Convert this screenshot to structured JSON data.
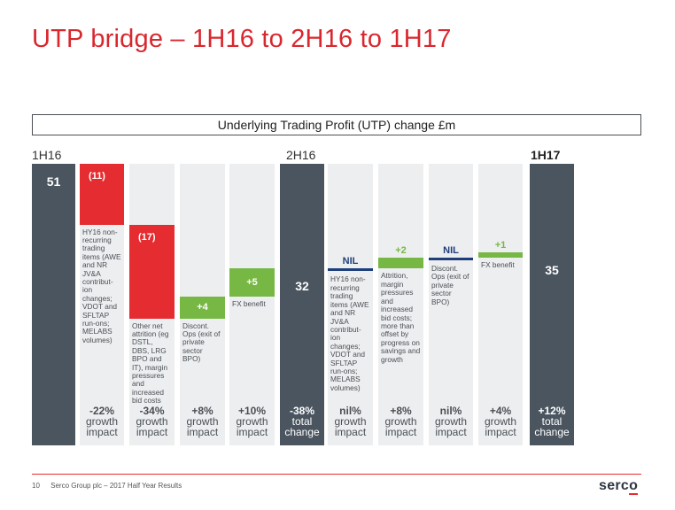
{
  "title": "UTP bridge – 1H16 to 2H16 to 1H17",
  "chart_header": "Underlying Trading Profit (UTP) change £m",
  "periods": {
    "start": "1H16",
    "mid": "2H16",
    "end": "1H17"
  },
  "chart_data": {
    "type": "waterfall",
    "title": "Underlying Trading Profit (UTP) change £m",
    "unit": "£m",
    "period_labels": [
      "1H16",
      "2H16",
      "1H17"
    ],
    "ylim": [
      0,
      51
    ],
    "steps": [
      {
        "kind": "total",
        "value": 51,
        "label": "51",
        "description": "",
        "impact": "",
        "impact_word": ""
      },
      {
        "kind": "change",
        "value": -11,
        "label": "(11)",
        "description": "HY16 non-recurring trading items (AWE and NR JV&A contribut-ion changes; VDOT and SFLTAP run-ons; MELABS volumes)",
        "impact": "-22%",
        "impact_word": "growth impact"
      },
      {
        "kind": "change",
        "value": -17,
        "label": "(17)",
        "description": "Other net attrition (eg DSTL, DBS, LRG BPO and IT), margin pressures and increased bid costs",
        "impact": "-34%",
        "impact_word": "growth impact"
      },
      {
        "kind": "change",
        "value": 4,
        "label": "+4",
        "description": "Discont. Ops (exit of private sector BPO)",
        "impact": "+8%",
        "impact_word": "growth impact"
      },
      {
        "kind": "change",
        "value": 5,
        "label": "+5",
        "description": "FX benefit",
        "impact": "+10%",
        "impact_word": "growth impact"
      },
      {
        "kind": "total",
        "value": 32,
        "label": "32",
        "description": "",
        "impact": "-38%",
        "impact_word": "total change"
      },
      {
        "kind": "change",
        "value": 0,
        "label": "NIL",
        "description": "HY16 non-recurring trading items (AWE and NR JV&A contribut-ion changes; VDOT and SFLTAP run-ons; MELABS volumes)",
        "impact": "nil%",
        "impact_word": "growth impact"
      },
      {
        "kind": "change",
        "value": 2,
        "label": "+2",
        "description": "Attrition, margin pressures and increased bid costs; more than offset by progress on savings and growth",
        "impact": "+8%",
        "impact_word": "growth impact"
      },
      {
        "kind": "change",
        "value": 0,
        "label": "NIL",
        "description": "Discont. Ops (exit of private sector BPO)",
        "impact": "nil%",
        "impact_word": "growth impact"
      },
      {
        "kind": "change",
        "value": 1,
        "label": "+1",
        "description": "FX benefit",
        "impact": "+4%",
        "impact_word": "growth impact"
      },
      {
        "kind": "total",
        "value": 35,
        "label": "35",
        "description": "",
        "impact": "+12%",
        "impact_word": "total change"
      }
    ]
  },
  "footer": {
    "page": "10",
    "text": "Serco Group plc – 2017 Half Year Results",
    "logo": "serco"
  },
  "colors": {
    "title": "#d9272e",
    "negative": "#e52c30",
    "positive": "#76b843",
    "total": "#4a5560",
    "nil": "#1f3f7a",
    "column_bg": "#edeef0"
  }
}
